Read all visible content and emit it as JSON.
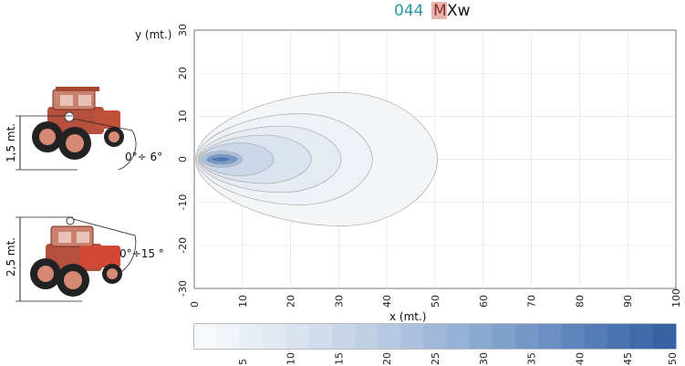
{
  "header": {
    "code": "044",
    "model_prefix": "M",
    "model_suffix": "Xw",
    "colors": {
      "code": "#2a97a3",
      "model_bg": "#e8b3ab",
      "model_prefix": "#8a2a2a",
      "model_suffix": "#111111"
    }
  },
  "tractors": [
    {
      "icon": "tractor-icon",
      "height_label": "1,5 mt.",
      "angle_label": "0°÷ 6°"
    },
    {
      "icon": "tractor-icon",
      "height_label": "2,5 mt.",
      "angle_label": "0°÷15 °"
    }
  ],
  "chart_data": {
    "type": "contour",
    "xlabel": "x (mt.)",
    "ylabel": "y (mt.)",
    "xlim": [
      0,
      100
    ],
    "ylim": [
      -30,
      30
    ],
    "xticks": [
      0,
      10,
      20,
      30,
      40,
      50,
      60,
      70,
      80,
      90,
      100
    ],
    "yticks": [
      -30,
      -20,
      -10,
      0,
      10,
      20,
      30
    ],
    "grid": true,
    "contours": [
      {
        "level": 1,
        "x_min": 0.3,
        "x_max": 50.5,
        "y_half": 15.5,
        "x_peak": 30.5,
        "fill": "#f4f5f7"
      },
      {
        "level": 2,
        "x_min": 0.5,
        "x_max": 37.0,
        "y_half": 10.6,
        "x_peak": 22.0,
        "fill": "#eef1f5"
      },
      {
        "level": 3,
        "x_min": 0.8,
        "x_max": 30.5,
        "y_half": 7.7,
        "x_peak": 18.0,
        "fill": "#e6ebf2"
      },
      {
        "level": 5,
        "x_min": 1.0,
        "x_max": 24.3,
        "y_half": 5.6,
        "x_peak": 14.5,
        "fill": "#dbe3ee"
      },
      {
        "level": 8,
        "x_min": 1.2,
        "x_max": 16.5,
        "y_half": 3.8,
        "x_peak": 9.5,
        "fill": "#cad7e9"
      },
      {
        "level": 15,
        "x_min": 1.5,
        "x_max": 10.0,
        "y_half": 1.9,
        "x_peak": 5.5,
        "fill": "#a9c0de"
      },
      {
        "level": 30,
        "x_min": 2.5,
        "x_max": 9.0,
        "y_half": 1.2,
        "x_peak": 5.5,
        "fill": "#6f97c9"
      },
      {
        "level": 45,
        "x_min": 3.5,
        "x_max": 7.5,
        "y_half": 0.6,
        "x_peak": 5.5,
        "fill": "#4a78b5"
      }
    ],
    "colorbar": {
      "min": 0,
      "max": 50,
      "ticks": [
        5,
        10,
        15,
        20,
        25,
        30,
        35,
        40,
        45,
        50
      ],
      "segment_colors": [
        "#f7f8fa",
        "#f0f3f7",
        "#e9eef5",
        "#e1e8f2",
        "#d9e3ef",
        "#d1ddec",
        "#c8d6e8",
        "#bfd0e5",
        "#b6c9e2",
        "#abc1dd",
        "#a0b9d9",
        "#95b1d5",
        "#8aa9d0",
        "#7fa0cb",
        "#7598c7",
        "#6a8fc2",
        "#5f86bc",
        "#547db7",
        "#4a74b1",
        "#406bab",
        "#3763a4"
      ]
    }
  }
}
